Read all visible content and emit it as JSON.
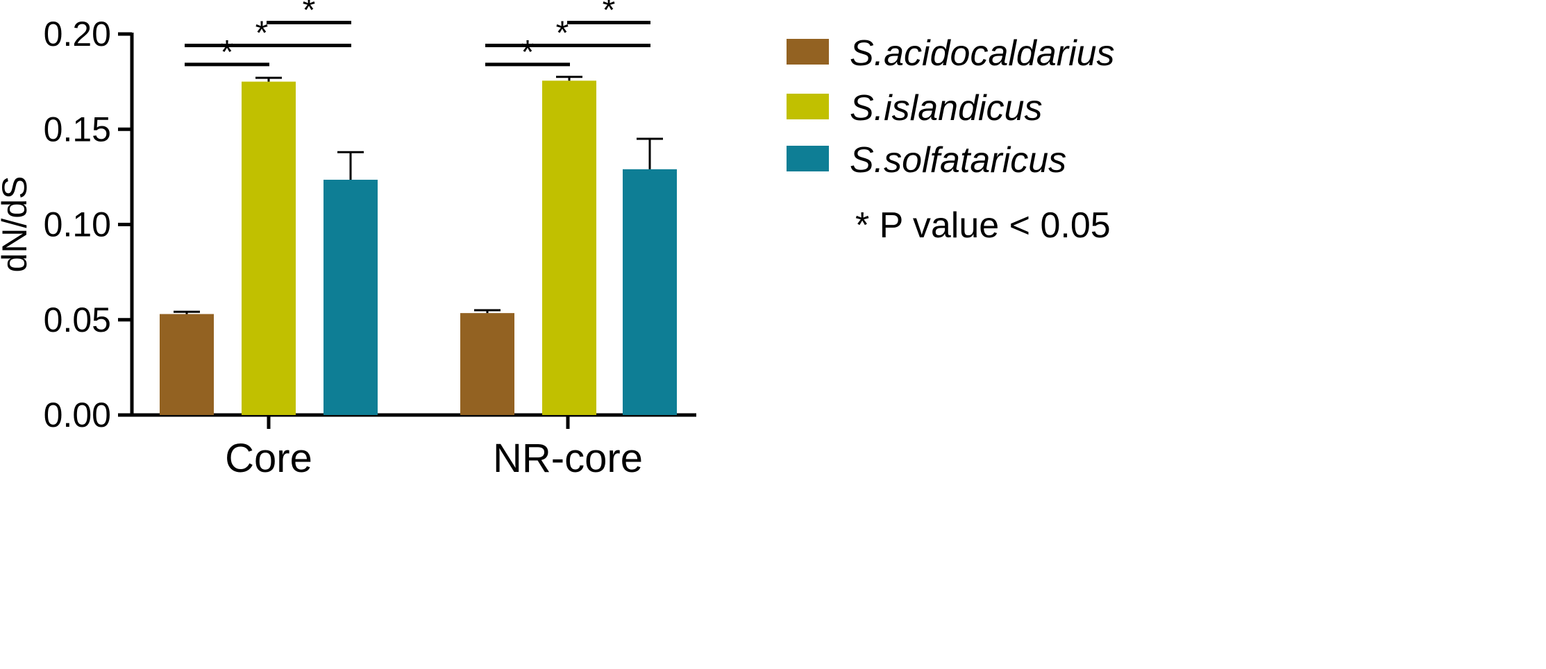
{
  "chart_data": {
    "type": "bar",
    "ylabel": "dN/dS",
    "xlabel": "",
    "ylim": [
      0,
      0.2
    ],
    "yticks": [
      "0.00",
      "0.05",
      "0.10",
      "0.15",
      "0.20"
    ],
    "categories": [
      "Core",
      "NR-core"
    ],
    "series": [
      {
        "name": "S.acidocaldarius",
        "color": "#936222",
        "values": [
          0.053,
          0.0535
        ],
        "errors": [
          0.0012,
          0.0015
        ]
      },
      {
        "name": "S.islandicus",
        "color": "#C1C000",
        "values": [
          0.175,
          0.1755
        ],
        "errors": [
          0.002,
          0.002
        ]
      },
      {
        "name": "S.solfataricus",
        "color": "#0E7E95",
        "values": [
          0.1235,
          0.129
        ],
        "errors": [
          0.0145,
          0.016
        ]
      }
    ],
    "significance": {
      "symbol": "*",
      "note": "* P value < 0.05",
      "comparisons": [
        {
          "category": 0,
          "from": 0,
          "to": 1,
          "level": 0.184
        },
        {
          "category": 0,
          "from": 0,
          "to": 2,
          "level": 0.194
        },
        {
          "category": 0,
          "from": 1,
          "to": 2,
          "level": 0.206
        },
        {
          "category": 1,
          "from": 0,
          "to": 1,
          "level": 0.184
        },
        {
          "category": 1,
          "from": 0,
          "to": 2,
          "level": 0.194
        },
        {
          "category": 1,
          "from": 1,
          "to": 2,
          "level": 0.206
        }
      ]
    },
    "legend_position": "right",
    "grid": false
  }
}
